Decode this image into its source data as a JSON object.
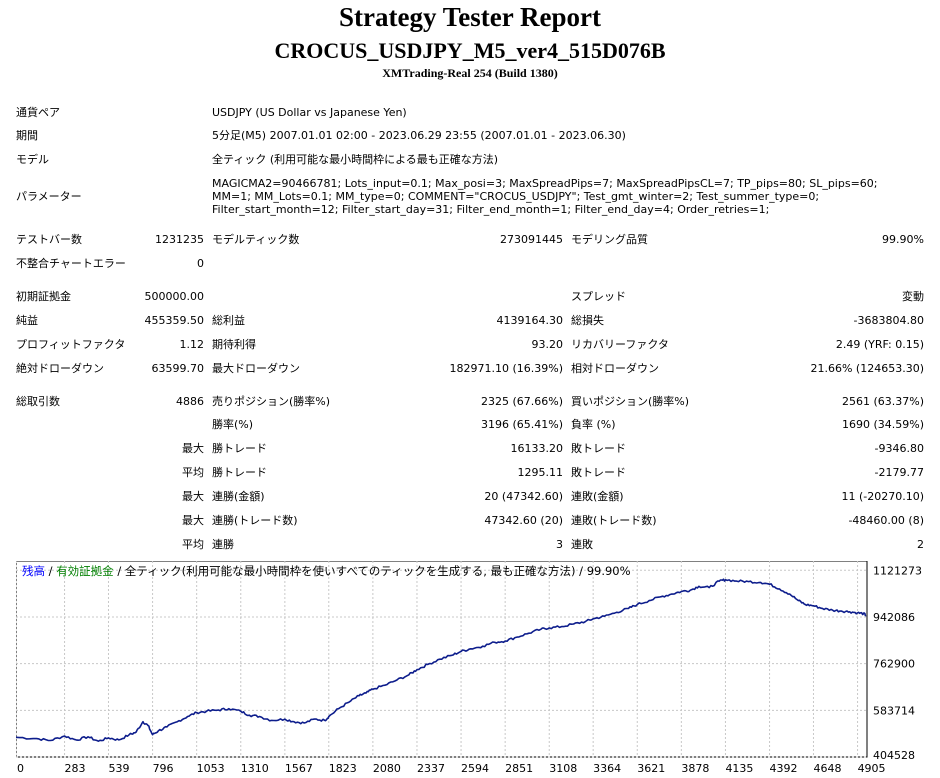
{
  "header": {
    "title": "Strategy Tester Report",
    "subtitle": "CROCUS_USDJPY_M5_ver4_515D076B",
    "server": "XMTrading-Real 254 (Build 1380)"
  },
  "info": {
    "symbol_label": "通貨ペア",
    "symbol_value": "USDJPY (US Dollar vs Japanese Yen)",
    "period_label": "期間",
    "period_value": "5分足(M5) 2007.01.01 02:00 - 2023.06.29 23:55 (2007.01.01 - 2023.06.30)",
    "model_label": "モデル",
    "model_value": "全ティック (利用可能な最小時間枠による最も正確な方法)",
    "params_label": "パラメーター",
    "params_value": "MAGICMA2=90466781; Lots_input=0.1; Max_posi=3; MaxSpreadPips=7; MaxSpreadPipsCL=7; TP_pips=80; SL_pips=60; MM=1; MM_Lots=0.1; MM_type=0; COMMENT=\"CROCUS_USDJPY\"; Test_gmt_winter=2; Test_summer_type=0; Filter_start_month=12; Filter_start_day=31; Filter_end_month=1; Filter_end_day=4; Order_retries=1;"
  },
  "stats": {
    "bars_label": "テストバー数",
    "bars_value": "1231235",
    "ticks_label": "モデルティック数",
    "ticks_value": "273091445",
    "quality_label": "モデリング品質",
    "quality_value": "99.90%",
    "mismatch_label": "不整合チャートエラー",
    "mismatch_value": "0",
    "deposit_label": "初期証拠金",
    "deposit_value": "500000.00",
    "spread_label": "スプレッド",
    "spread_value": "変動",
    "netprofit_label": "純益",
    "netprofit_value": "455359.50",
    "grossprofit_label": "総利益",
    "grossprofit_value": "4139164.30",
    "grossloss_label": "総損失",
    "grossloss_value": "-3683804.80",
    "pf_label": "プロフィットファクタ",
    "pf_value": "1.12",
    "payoff_label": "期待利得",
    "payoff_value": "93.20",
    "recovery_label": "リカバリーファクタ",
    "recovery_value": "2.49 (YRF: 0.15)",
    "absdd_label": "絶対ドローダウン",
    "absdd_value": "63599.70",
    "maxdd_label": "最大ドローダウン",
    "maxdd_value": "182971.10 (16.39%)",
    "reldd_label": "相対ドローダウン",
    "reldd_value": "21.66% (124653.30)",
    "trades_label": "総取引数",
    "trades_value": "4886",
    "short_label": "売りポジション(勝率%)",
    "short_value": "2325 (67.66%)",
    "long_label": "買いポジション(勝率%)",
    "long_value": "2561 (63.37%)",
    "win_label": "勝率(%)",
    "win_value": "3196 (65.41%)",
    "loss_label": "負率 (%)",
    "loss_value": "1690 (34.59%)",
    "max_label": "最大",
    "avg_label": "平均",
    "largest_win_label": "勝トレード",
    "largest_win_value": "16133.20",
    "largest_loss_label": "敗トレード",
    "largest_loss_value": "-9346.80",
    "avg_win_label": "勝トレード",
    "avg_win_value": "1295.11",
    "avg_loss_label": "敗トレード",
    "avg_loss_value": "-2179.77",
    "cons_win_money_label": "連勝(金額)",
    "cons_win_money_value": "20 (47342.60)",
    "cons_loss_money_label": "連敗(金額)",
    "cons_loss_money_value": "11 (-20270.10)",
    "cons_win_count_label": "連勝(トレード数)",
    "cons_win_count_value": "47342.60 (20)",
    "cons_loss_count_label": "連敗(トレード数)",
    "cons_loss_count_value": "-48460.00 (8)",
    "avg_cons_win_label": "連勝",
    "avg_cons_win_value": "3",
    "avg_cons_loss_label": "連敗",
    "avg_cons_loss_value": "2"
  },
  "legend": {
    "balance": "残高",
    "equity": "有効証拠金",
    "sep": " / ",
    "rest": " / 全ティック(利用可能な最小時間枠を使いすべてのティックを生成する, 最も正確な方法) / 99.90%"
  },
  "colors": {
    "balance": "#0000ff",
    "equity": "#008000",
    "line": "#0d1d8c",
    "grid": "#c8c8c8"
  },
  "chart_data": {
    "type": "line",
    "x_ticks": [
      "0",
      "283",
      "539",
      "796",
      "1053",
      "1310",
      "1567",
      "1823",
      "2080",
      "2337",
      "2594",
      "2851",
      "3108",
      "3364",
      "3621",
      "3878",
      "4135",
      "4392",
      "4648",
      "4905"
    ],
    "y_ticks": [
      "1121273",
      "942086",
      "762900",
      "583714",
      "404528"
    ],
    "ylim": [
      404528,
      1157000
    ],
    "xlim": [
      0,
      4960
    ],
    "series": [
      {
        "name": "残高",
        "x": [
          0,
          120,
          200,
          283,
          350,
          420,
          480,
          539,
          600,
          660,
          700,
          740,
          770,
          796,
          830,
          880,
          940,
          1000,
          1053,
          1110,
          1180,
          1240,
          1310,
          1360,
          1420,
          1490,
          1567,
          1620,
          1680,
          1740,
          1800,
          1823,
          1880,
          1940,
          2000,
          2040,
          2080,
          2150,
          2220,
          2290,
          2337,
          2400,
          2470,
          2540,
          2594,
          2650,
          2720,
          2790,
          2851,
          2920,
          2990,
          3060,
          3108,
          3180,
          3250,
          3320,
          3364,
          3430,
          3500,
          3570,
          3621,
          3690,
          3760,
          3820,
          3878,
          3930,
          3980,
          4040,
          4100,
          4135,
          4200,
          4270,
          4340,
          4392,
          4450,
          4510,
          4560,
          4600,
          4648,
          4700,
          4760,
          4810,
          4860,
          4905,
          4940,
          4955
        ],
        "values": [
          480000,
          475000,
          468000,
          485000,
          470000,
          482000,
          465000,
          478000,
          470000,
          490000,
          500000,
          540000,
          525000,
          490000,
          505000,
          520000,
          540000,
          560000,
          575000,
          580000,
          585000,
          590000,
          580000,
          565000,
          560000,
          545000,
          550000,
          540000,
          535000,
          550000,
          545000,
          560000,
          590000,
          615000,
          640000,
          650000,
          665000,
          680000,
          700000,
          720000,
          740000,
          760000,
          780000,
          795000,
          810000,
          820000,
          830000,
          845000,
          850000,
          865000,
          880000,
          895000,
          900000,
          905000,
          915000,
          925000,
          935000,
          945000,
          960000,
          975000,
          990000,
          1005000,
          1020000,
          1030000,
          1040000,
          1045000,
          1060000,
          1055000,
          1080000,
          1085000,
          1080000,
          1078000,
          1075000,
          1068000,
          1050000,
          1030000,
          1005000,
          990000,
          985000,
          975000,
          968000,
          965000,
          962000,
          958000,
          955000,
          948000
        ]
      }
    ]
  }
}
